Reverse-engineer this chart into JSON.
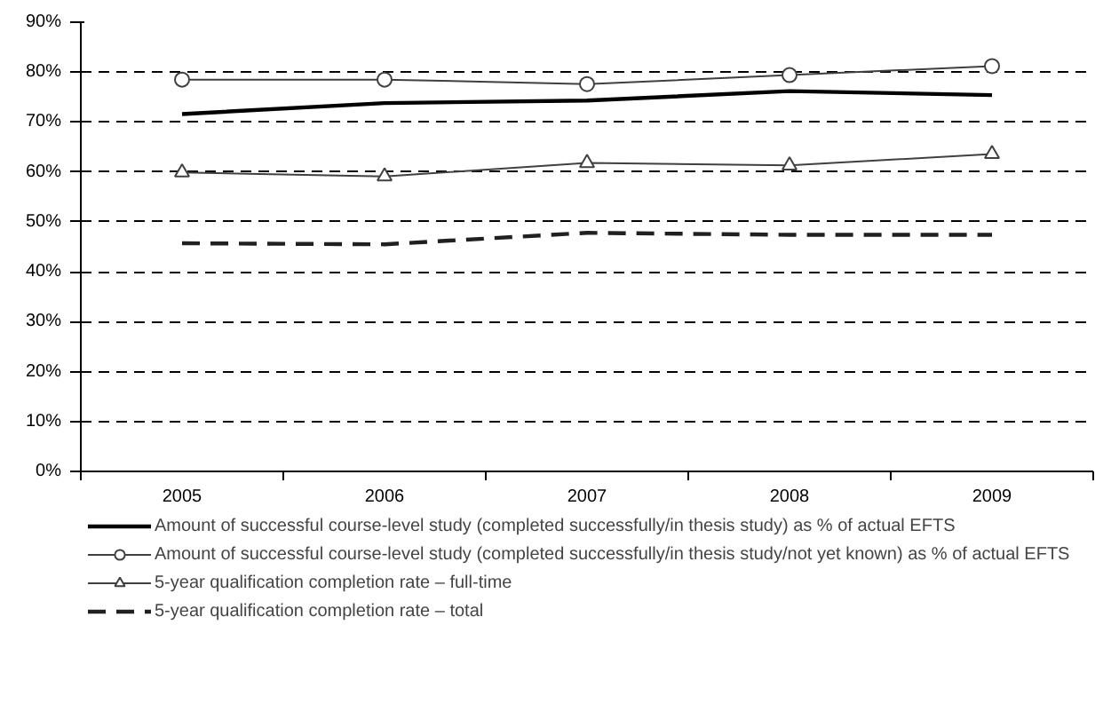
{
  "chart_data": {
    "type": "line",
    "categories": [
      "2005",
      "2006",
      "2007",
      "2008",
      "2009"
    ],
    "ylim": [
      0,
      0.9
    ],
    "yticks": [
      {
        "value": 0,
        "label": "0%"
      },
      {
        "value": 0.1,
        "label": "10%"
      },
      {
        "value": 0.2,
        "label": "20%"
      },
      {
        "value": 0.3,
        "label": "30%"
      },
      {
        "value": 0.4,
        "label": "40%"
      },
      {
        "value": 0.5,
        "label": "50%"
      },
      {
        "value": 0.6,
        "label": "60%"
      },
      {
        "value": 0.7,
        "label": "70%"
      },
      {
        "value": 0.8,
        "label": "80%"
      },
      {
        "value": 0.9,
        "label": "90%"
      }
    ],
    "grid": "y",
    "legend": "bottom",
    "series": [
      {
        "name": "Amount of successful course-level study (completed successfully/in thesis study) as % of actual EFTS",
        "color": "#000000",
        "values": [
          0.716,
          0.738,
          0.743,
          0.762,
          0.754
        ],
        "marker": "none",
        "line_style": "solid"
      },
      {
        "name": "Amount of successful course-level study (completed successfully/in thesis study/not yet known) as % of actual EFTS",
        "color": "#404040",
        "values": [
          0.785,
          0.785,
          0.776,
          0.794,
          0.812
        ],
        "marker": "circle",
        "line_style": "solid"
      },
      {
        "name": "5-year qualification completion rate – full-time",
        "color": "#404040",
        "values": [
          0.599,
          0.591,
          0.618,
          0.613,
          0.636
        ],
        "marker": "triangle",
        "line_style": "solid"
      },
      {
        "name": "5-year qualification completion rate – total",
        "color": "#202020",
        "values": [
          0.457,
          0.455,
          0.478,
          0.474,
          0.474
        ],
        "marker": "none",
        "line_style": "dashed"
      }
    ]
  }
}
